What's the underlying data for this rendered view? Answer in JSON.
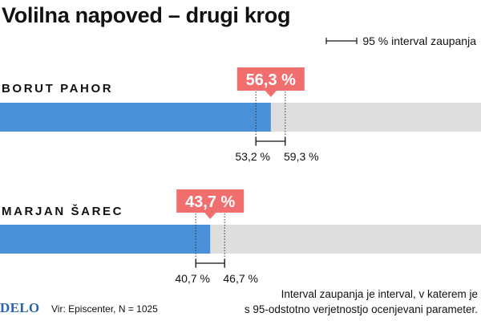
{
  "title": "Volilna napoved – drugi krog",
  "legend": {
    "ci_label": "95 % interval zaupanja"
  },
  "colors": {
    "bar": "#4a90d9",
    "track": "#dedede",
    "label_bg": "#f06e6e",
    "label_text": "#ffffff"
  },
  "chart_data": {
    "type": "bar",
    "orientation": "horizontal",
    "xlim": [
      0,
      100
    ],
    "categories": [
      "BORUT PAHOR",
      "MARJAN ŠAREC"
    ],
    "values": [
      56.3,
      43.7
    ],
    "value_labels": [
      "56,3 %",
      "43,7 %"
    ],
    "ci_low": [
      53.2,
      40.7
    ],
    "ci_high": [
      59.3,
      46.7
    ],
    "ci_low_labels": [
      "53,2 %",
      "40,7 %"
    ],
    "ci_high_labels": [
      "59,3 %",
      "46,7 %"
    ]
  },
  "footer": {
    "logo": "DELO",
    "source": "Vir: Episcenter, N = 1025",
    "note_line1": "Interval zaupanja je interval, v katerem je",
    "note_line2": "s 95-odstotno verjetnostjo ocenjevani parameter."
  }
}
